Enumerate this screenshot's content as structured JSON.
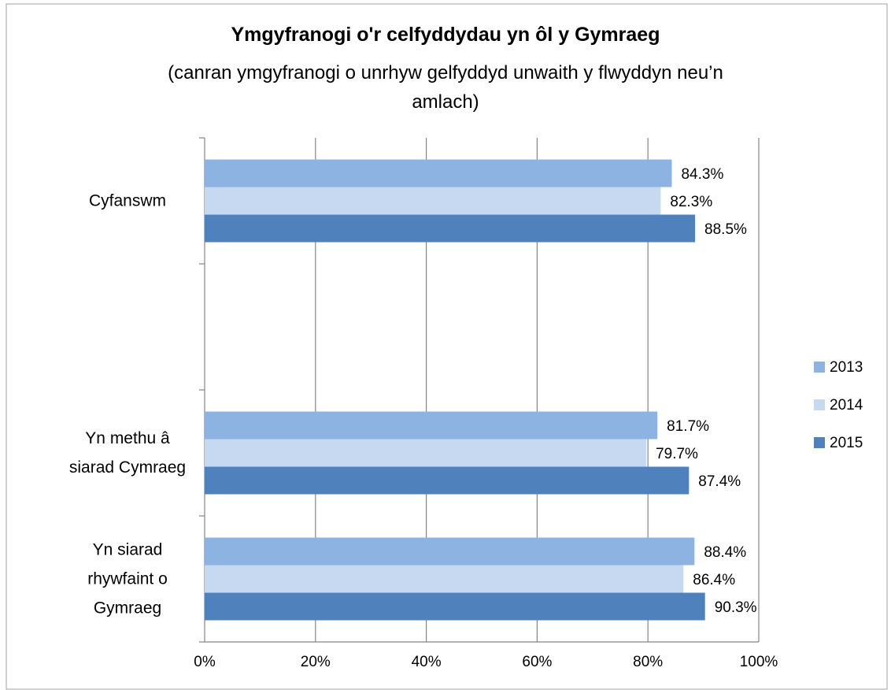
{
  "chart_data": {
    "type": "bar",
    "orientation": "horizontal",
    "title": "Ymgyfranogi o'r celfyddydau yn ôl y Gymraeg",
    "subtitle": "(canran ymgyfranogi o unrhyw gelfyddyd unwaith y flwyddyn neu’n amlach)",
    "categories": [
      "Cyfanswm",
      null,
      "Yn methu â siarad Cymraeg",
      "Yn siarad rhywfaint o Gymraeg"
    ],
    "series": [
      {
        "name": "2013",
        "color": "#8db3e2",
        "values": [
          84.3,
          null,
          81.7,
          88.4
        ],
        "value_labels": [
          "84.3%",
          null,
          "81.7%",
          "88.4%"
        ]
      },
      {
        "name": "2014",
        "color": "#c6d9f1",
        "values": [
          82.3,
          null,
          79.7,
          86.4
        ],
        "value_labels": [
          "82.3%",
          null,
          "79.7%",
          "86.4%"
        ]
      },
      {
        "name": "2015",
        "color": "#4f81bd",
        "values": [
          88.5,
          null,
          87.4,
          90.3
        ],
        "value_labels": [
          "88.5%",
          null,
          "87.4%",
          "90.3%"
        ]
      }
    ],
    "xlim": [
      0,
      100
    ],
    "xticks": [
      {
        "value": 0,
        "label": "0%"
      },
      {
        "value": 20,
        "label": "20%"
      },
      {
        "value": 40,
        "label": "40%"
      },
      {
        "value": 60,
        "label": "60%"
      },
      {
        "value": 80,
        "label": "80%"
      },
      {
        "value": 100,
        "label": "100%"
      }
    ],
    "grid": true,
    "legend": "right"
  }
}
